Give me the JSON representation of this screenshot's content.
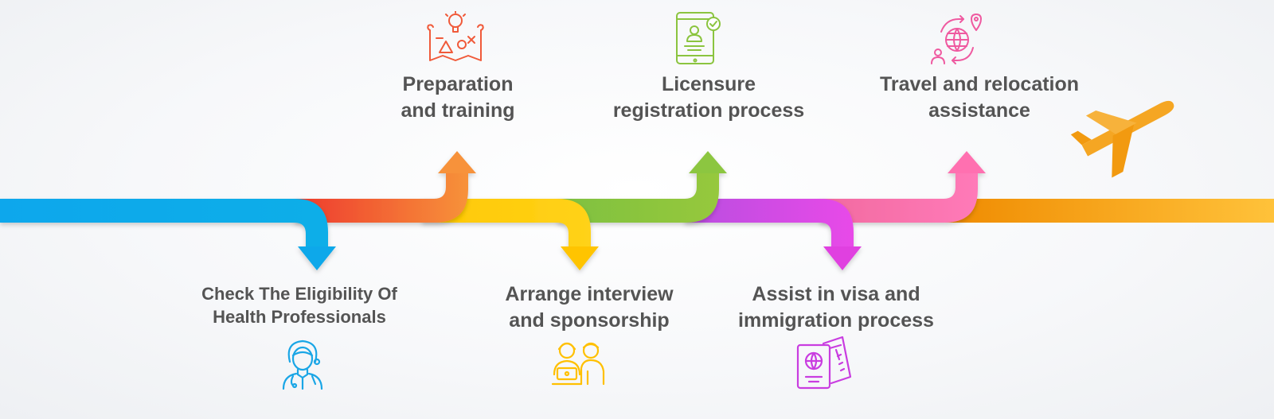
{
  "steps": [
    {
      "id": "check",
      "lines": [
        "Check The Eligibility Of",
        "Health Professionals"
      ],
      "color": "#1aa6e6",
      "icon": "nurse-icon"
    },
    {
      "id": "prep",
      "lines": [
        "Preparation",
        "and training"
      ],
      "color": "#f6742d",
      "icon": "planning-map-icon"
    },
    {
      "id": "interview",
      "lines": [
        "Arrange interview",
        "and sponsorship"
      ],
      "color": "#ffc61a",
      "icon": "interview-people-icon"
    },
    {
      "id": "licensure",
      "lines": [
        "Licensure",
        "registration process"
      ],
      "color": "#8bc43f",
      "icon": "mobile-verified-id-icon"
    },
    {
      "id": "visa",
      "lines": [
        "Assist in visa and",
        "immigration process"
      ],
      "color": "#d94ad9",
      "icon": "passport-ticket-icon"
    },
    {
      "id": "travel",
      "lines": [
        "Travel and relocation",
        "assistance"
      ],
      "color": "#f062a8",
      "icon": "globe-location-icon"
    }
  ],
  "airplane": {
    "icon": "airplane-icon",
    "color": "#f5a623"
  }
}
